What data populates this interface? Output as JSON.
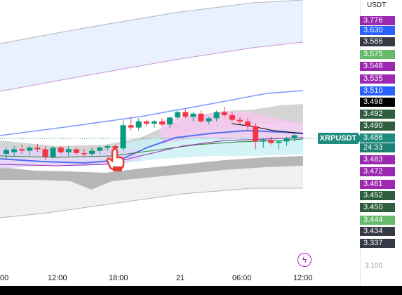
{
  "currency_label": "USDT",
  "symbol": "XRPUSDT",
  "countdown": "24:33",
  "axis_faded_label": "3.100",
  "bolt_icon": "lightning-icon",
  "price_tags": [
    {
      "label": "3.776",
      "bg": "#9c27b0"
    },
    {
      "label": "3.630",
      "bg": "#2962ff"
    },
    {
      "label": "3.586",
      "bg": "#363a45"
    },
    {
      "label": "3.575",
      "bg": "#66bb6a"
    },
    {
      "label": "3.548",
      "bg": "#9c27b0"
    },
    {
      "label": "3.535",
      "bg": "#9c27b0"
    },
    {
      "label": "3.510",
      "bg": "#2962ff"
    },
    {
      "label": "3.498",
      "bg": "#000000"
    },
    {
      "label": "3.492",
      "bg": "#2e5e3e"
    },
    {
      "label": "3.490",
      "bg": "#2e5e3e"
    },
    {
      "label": "3.486",
      "bg": "#1e8c7e"
    },
    {
      "label": "3.483",
      "bg": "#9c27b0"
    },
    {
      "label": "3.472",
      "bg": "#9c27b0"
    },
    {
      "label": "3.461",
      "bg": "#9c27b0"
    },
    {
      "label": "3.452",
      "bg": "#2e5e3e"
    },
    {
      "label": "3.450",
      "bg": "#2e5e3e"
    },
    {
      "label": "3.444",
      "bg": "#66bb6a"
    },
    {
      "label": "3.434",
      "bg": "#363a45"
    },
    {
      "label": "3.337",
      "bg": "#363a45"
    }
  ],
  "time_labels": [
    "00",
    "12:00",
    "18:00",
    "21",
    "06:00",
    "12:00"
  ],
  "chart_data": {
    "type": "candlestick",
    "x_ticks": [
      "00",
      "12:00",
      "18:00",
      "21",
      "06:00",
      "12:00"
    ],
    "colors": {
      "up": "#089981",
      "down": "#f23645"
    },
    "candles": [
      {
        "o": 3.466,
        "h": 3.474,
        "l": 3.458,
        "c": 3.471
      },
      {
        "o": 3.468,
        "h": 3.476,
        "l": 3.462,
        "c": 3.472
      },
      {
        "o": 3.472,
        "h": 3.478,
        "l": 3.466,
        "c": 3.47
      },
      {
        "o": 3.47,
        "h": 3.476,
        "l": 3.464,
        "c": 3.474
      },
      {
        "o": 3.474,
        "h": 3.479,
        "l": 3.468,
        "c": 3.472
      },
      {
        "o": 3.472,
        "h": 3.476,
        "l": 3.458,
        "c": 3.462
      },
      {
        "o": 3.462,
        "h": 3.476,
        "l": 3.46,
        "c": 3.474
      },
      {
        "o": 3.474,
        "h": 3.476,
        "l": 3.466,
        "c": 3.468
      },
      {
        "o": 3.468,
        "h": 3.476,
        "l": 3.463,
        "c": 3.472
      },
      {
        "o": 3.472,
        "h": 3.474,
        "l": 3.464,
        "c": 3.467
      },
      {
        "o": 3.467,
        "h": 3.472,
        "l": 3.462,
        "c": 3.466
      },
      {
        "o": 3.466,
        "h": 3.474,
        "l": 3.462,
        "c": 3.47
      },
      {
        "o": 3.47,
        "h": 3.476,
        "l": 3.466,
        "c": 3.474
      },
      {
        "o": 3.474,
        "h": 3.478,
        "l": 3.47,
        "c": 3.476
      },
      {
        "o": 3.476,
        "h": 3.478,
        "l": 3.47,
        "c": 3.473
      },
      {
        "o": 3.473,
        "h": 3.51,
        "l": 3.47,
        "c": 3.503
      },
      {
        "o": 3.503,
        "h": 3.514,
        "l": 3.496,
        "c": 3.5
      },
      {
        "o": 3.5,
        "h": 3.512,
        "l": 3.496,
        "c": 3.508
      },
      {
        "o": 3.508,
        "h": 3.51,
        "l": 3.502,
        "c": 3.505
      },
      {
        "o": 3.505,
        "h": 3.51,
        "l": 3.5,
        "c": 3.508
      },
      {
        "o": 3.508,
        "h": 3.512,
        "l": 3.502,
        "c": 3.504
      },
      {
        "o": 3.504,
        "h": 3.514,
        "l": 3.5,
        "c": 3.513
      },
      {
        "o": 3.513,
        "h": 3.522,
        "l": 3.51,
        "c": 3.52
      },
      {
        "o": 3.52,
        "h": 3.524,
        "l": 3.512,
        "c": 3.514
      },
      {
        "o": 3.514,
        "h": 3.52,
        "l": 3.508,
        "c": 3.518
      },
      {
        "o": 3.518,
        "h": 3.522,
        "l": 3.506,
        "c": 3.508
      },
      {
        "o": 3.508,
        "h": 3.514,
        "l": 3.504,
        "c": 3.512
      },
      {
        "o": 3.512,
        "h": 3.522,
        "l": 3.508,
        "c": 3.52
      },
      {
        "o": 3.52,
        "h": 3.527,
        "l": 3.514,
        "c": 3.516
      },
      {
        "o": 3.516,
        "h": 3.52,
        "l": 3.508,
        "c": 3.51
      },
      {
        "o": 3.51,
        "h": 3.514,
        "l": 3.504,
        "c": 3.508
      },
      {
        "o": 3.508,
        "h": 3.512,
        "l": 3.496,
        "c": 3.502
      },
      {
        "o": 3.502,
        "h": 3.506,
        "l": 3.472,
        "c": 3.482
      },
      {
        "o": 3.482,
        "h": 3.486,
        "l": 3.474,
        "c": 3.484
      },
      {
        "o": 3.484,
        "h": 3.488,
        "l": 3.478,
        "c": 3.48
      },
      {
        "o": 3.48,
        "h": 3.484,
        "l": 3.472,
        "c": 3.482
      },
      {
        "o": 3.482,
        "h": 3.488,
        "l": 3.476,
        "c": 3.486
      },
      {
        "o": 3.486,
        "h": 3.492,
        "l": 3.482,
        "c": 3.49
      }
    ]
  }
}
